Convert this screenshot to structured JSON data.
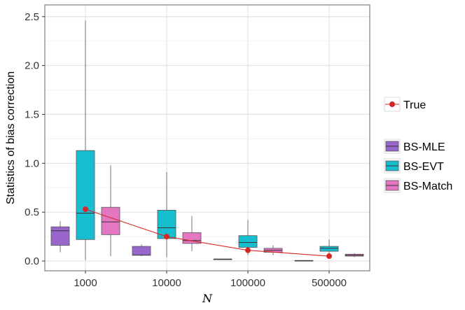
{
  "chart_data": {
    "type": "box",
    "xlabel": "N",
    "ylabel": "Statistics of bias correction",
    "categories": [
      "1000",
      "10000",
      "100000",
      "500000"
    ],
    "ylim": [
      -0.1,
      2.62
    ],
    "yticks": [
      0.0,
      0.5,
      1.0,
      1.5,
      2.0,
      2.5
    ],
    "ytick_labels": [
      "0.0",
      "0.5",
      "1.0",
      "1.5",
      "2.0",
      "2.5"
    ],
    "grid": true,
    "legend_position": "right",
    "series": [
      {
        "name": "BS-MLE",
        "color": "#9966CC",
        "boxes": [
          {
            "min": 0.09,
            "q1": 0.16,
            "median": 0.31,
            "q3": 0.35,
            "max": 0.41
          },
          {
            "min": 0.05,
            "q1": 0.06,
            "median": 0.06,
            "q3": 0.15,
            "max": 0.17
          },
          {
            "min": 0.02,
            "q1": 0.02,
            "median": 0.02,
            "q3": 0.02,
            "max": 0.02
          },
          {
            "min": 0.005,
            "q1": 0.005,
            "median": 0.005,
            "q3": 0.005,
            "max": 0.005
          }
        ]
      },
      {
        "name": "BS-EVT",
        "color": "#17BECF",
        "boxes": [
          {
            "min": 0.01,
            "q1": 0.22,
            "median": 0.49,
            "q3": 1.13,
            "max": 2.46
          },
          {
            "min": 0.04,
            "q1": 0.23,
            "median": 0.34,
            "q3": 0.52,
            "max": 0.91
          },
          {
            "min": 0.06,
            "q1": 0.14,
            "median": 0.19,
            "q3": 0.26,
            "max": 0.42
          },
          {
            "min": 0.06,
            "q1": 0.1,
            "median": 0.13,
            "q3": 0.15,
            "max": 0.22
          }
        ]
      },
      {
        "name": "BS-Match",
        "color": "#E377C2",
        "boxes": [
          {
            "min": 0.05,
            "q1": 0.27,
            "median": 0.4,
            "q3": 0.55,
            "max": 0.98
          },
          {
            "min": 0.1,
            "q1": 0.18,
            "median": 0.21,
            "q3": 0.29,
            "max": 0.46
          },
          {
            "min": 0.06,
            "q1": 0.09,
            "median": 0.11,
            "q3": 0.13,
            "max": 0.16
          },
          {
            "min": 0.04,
            "q1": 0.05,
            "median": 0.06,
            "q3": 0.07,
            "max": 0.08
          }
        ]
      }
    ],
    "true_line": {
      "name": "True",
      "color": "#D62728",
      "values": [
        0.53,
        0.25,
        0.11,
        0.05
      ]
    },
    "legend": {
      "line_entries": [
        "True"
      ],
      "box_entries": [
        "BS-MLE",
        "BS-EVT",
        "BS-Match"
      ]
    }
  }
}
